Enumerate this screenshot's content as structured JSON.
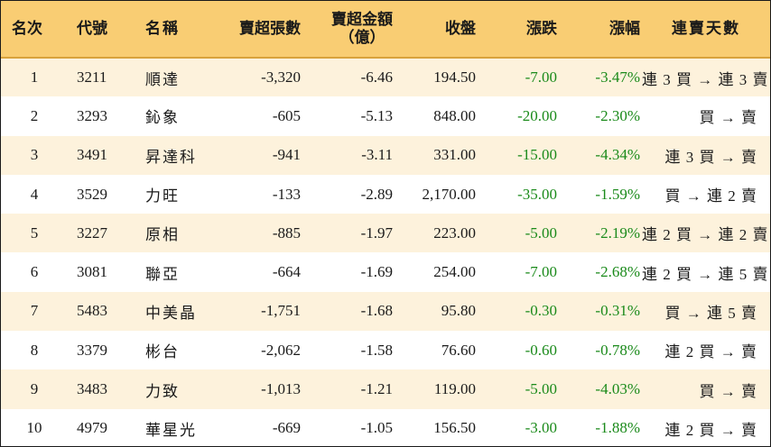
{
  "headers": {
    "rank": "名次",
    "code": "代號",
    "name": "名稱",
    "sheets": "賣超張數",
    "amount_line1": "賣超金額",
    "amount_line2": "（億）",
    "close": "收盤",
    "change": "漲跌",
    "pct": "漲幅",
    "days": "連賣天數"
  },
  "rows": [
    {
      "rank": "1",
      "code": "3211",
      "name": "順達",
      "sheets": "-3,320",
      "amount": "-6.46",
      "close": "194.50",
      "change": "-7.00",
      "pct": "-3.47%",
      "days": "連 3 買 → 連 3 賣"
    },
    {
      "rank": "2",
      "code": "3293",
      "name": "鈊象",
      "sheets": "-605",
      "amount": "-5.13",
      "close": "848.00",
      "change": "-20.00",
      "pct": "-2.30%",
      "days": "買 → 賣"
    },
    {
      "rank": "3",
      "code": "3491",
      "name": "昇達科",
      "sheets": "-941",
      "amount": "-3.11",
      "close": "331.00",
      "change": "-15.00",
      "pct": "-4.34%",
      "days": "連 3 買 → 賣"
    },
    {
      "rank": "4",
      "code": "3529",
      "name": "力旺",
      "sheets": "-133",
      "amount": "-2.89",
      "close": "2,170.00",
      "change": "-35.00",
      "pct": "-1.59%",
      "days": "買 → 連 2 賣"
    },
    {
      "rank": "5",
      "code": "3227",
      "name": "原相",
      "sheets": "-885",
      "amount": "-1.97",
      "close": "223.00",
      "change": "-5.00",
      "pct": "-2.19%",
      "days": "連 2 買 → 連 2 賣"
    },
    {
      "rank": "6",
      "code": "3081",
      "name": "聯亞",
      "sheets": "-664",
      "amount": "-1.69",
      "close": "254.00",
      "change": "-7.00",
      "pct": "-2.68%",
      "days": "連 2 買 → 連 5 賣"
    },
    {
      "rank": "7",
      "code": "5483",
      "name": "中美晶",
      "sheets": "-1,751",
      "amount": "-1.68",
      "close": "95.80",
      "change": "-0.30",
      "pct": "-0.31%",
      "days": "買 → 連 5 賣"
    },
    {
      "rank": "8",
      "code": "3379",
      "name": "彬台",
      "sheets": "-2,062",
      "amount": "-1.58",
      "close": "76.60",
      "change": "-0.60",
      "pct": "-0.78%",
      "days": "連 2 買 → 賣"
    },
    {
      "rank": "9",
      "code": "3483",
      "name": "力致",
      "sheets": "-1,013",
      "amount": "-1.21",
      "close": "119.00",
      "change": "-5.00",
      "pct": "-4.03%",
      "days": "買 → 賣"
    },
    {
      "rank": "10",
      "code": "4979",
      "name": "華星光",
      "sheets": "-669",
      "amount": "-1.05",
      "close": "156.50",
      "change": "-3.00",
      "pct": "-1.88%",
      "days": "連 2 買 → 賣"
    }
  ],
  "colors": {
    "header_bg": "#f9cd73",
    "odd_row_bg": "#fdf2dc",
    "even_row_bg": "#ffffff",
    "down_text": "#1a8a1a",
    "text": "#1a1a1a"
  }
}
